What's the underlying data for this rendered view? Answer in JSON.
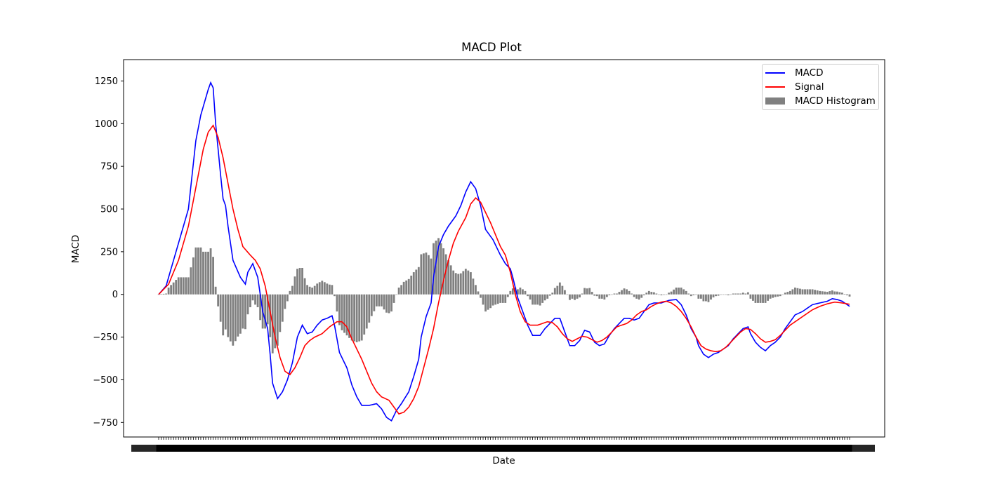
{
  "chart_data": {
    "type": "line",
    "title": "MACD Plot",
    "xlabel": "Date",
    "ylabel": "MACD",
    "ylim": [
      -835,
      1375
    ],
    "yticks": [
      1250,
      1000,
      750,
      500,
      250,
      0,
      -250,
      -500,
      -750
    ],
    "x_points": 280,
    "grid": false,
    "legend_placement": "upper right",
    "colors": {
      "macd": "#0000ff",
      "signal": "#ff0000",
      "histogram": "#808080"
    },
    "series": [
      {
        "name": "MACD",
        "kind": "line",
        "knots": [
          [
            0,
            0
          ],
          [
            3,
            50
          ],
          [
            8,
            300
          ],
          [
            12,
            500
          ],
          [
            15,
            900
          ],
          [
            17,
            1050
          ],
          [
            20,
            1200
          ],
          [
            21,
            1240
          ],
          [
            22,
            1210
          ],
          [
            23,
            1000
          ],
          [
            25,
            700
          ],
          [
            26,
            560
          ],
          [
            27,
            520
          ],
          [
            28,
            400
          ],
          [
            29,
            300
          ],
          [
            30,
            200
          ],
          [
            33,
            100
          ],
          [
            35,
            60
          ],
          [
            36,
            130
          ],
          [
            38,
            180
          ],
          [
            40,
            100
          ],
          [
            42,
            -100
          ],
          [
            44,
            -200
          ],
          [
            45,
            -350
          ],
          [
            46,
            -520
          ],
          [
            48,
            -610
          ],
          [
            50,
            -570
          ],
          [
            52,
            -500
          ],
          [
            54,
            -400
          ],
          [
            56,
            -250
          ],
          [
            58,
            -180
          ],
          [
            60,
            -230
          ],
          [
            62,
            -220
          ],
          [
            64,
            -180
          ],
          [
            66,
            -150
          ],
          [
            68,
            -140
          ],
          [
            70,
            -125
          ],
          [
            71,
            -180
          ],
          [
            72,
            -260
          ],
          [
            73,
            -340
          ],
          [
            76,
            -430
          ],
          [
            78,
            -530
          ],
          [
            80,
            -600
          ],
          [
            82,
            -650
          ],
          [
            85,
            -650
          ],
          [
            88,
            -640
          ],
          [
            90,
            -670
          ],
          [
            92,
            -720
          ],
          [
            94,
            -740
          ],
          [
            96,
            -680
          ],
          [
            98,
            -640
          ],
          [
            101,
            -570
          ],
          [
            103,
            -480
          ],
          [
            105,
            -380
          ],
          [
            106,
            -250
          ],
          [
            108,
            -130
          ],
          [
            110,
            -50
          ],
          [
            111,
            100
          ],
          [
            113,
            280
          ],
          [
            115,
            350
          ],
          [
            117,
            400
          ],
          [
            120,
            460
          ],
          [
            122,
            520
          ],
          [
            124,
            600
          ],
          [
            126,
            660
          ],
          [
            128,
            620
          ],
          [
            130,
            520
          ],
          [
            131,
            450
          ],
          [
            132,
            380
          ],
          [
            135,
            320
          ],
          [
            138,
            230
          ],
          [
            140,
            180
          ],
          [
            142,
            150
          ],
          [
            143,
            100
          ],
          [
            145,
            -20
          ],
          [
            147,
            -100
          ],
          [
            149,
            -180
          ],
          [
            151,
            -240
          ],
          [
            154,
            -240
          ],
          [
            156,
            -200
          ],
          [
            158,
            -170
          ],
          [
            160,
            -140
          ],
          [
            162,
            -140
          ],
          [
            164,
            -220
          ],
          [
            166,
            -300
          ],
          [
            168,
            -300
          ],
          [
            170,
            -270
          ],
          [
            172,
            -210
          ],
          [
            174,
            -220
          ],
          [
            176,
            -280
          ],
          [
            178,
            -300
          ],
          [
            180,
            -290
          ],
          [
            182,
            -240
          ],
          [
            184,
            -200
          ],
          [
            186,
            -170
          ],
          [
            188,
            -140
          ],
          [
            190,
            -140
          ],
          [
            192,
            -150
          ],
          [
            194,
            -140
          ],
          [
            196,
            -100
          ],
          [
            198,
            -60
          ],
          [
            200,
            -50
          ],
          [
            203,
            -50
          ],
          [
            206,
            -35
          ],
          [
            209,
            -30
          ],
          [
            211,
            -60
          ],
          [
            213,
            -120
          ],
          [
            215,
            -200
          ],
          [
            217,
            -250
          ],
          [
            218,
            -300
          ],
          [
            220,
            -350
          ],
          [
            222,
            -370
          ],
          [
            224,
            -350
          ],
          [
            226,
            -340
          ],
          [
            228,
            -320
          ],
          [
            230,
            -300
          ],
          [
            232,
            -260
          ],
          [
            234,
            -230
          ],
          [
            236,
            -200
          ],
          [
            238,
            -190
          ],
          [
            239,
            -230
          ],
          [
            241,
            -280
          ],
          [
            243,
            -310
          ],
          [
            245,
            -330
          ],
          [
            247,
            -300
          ],
          [
            249,
            -280
          ],
          [
            251,
            -250
          ],
          [
            253,
            -200
          ],
          [
            255,
            -160
          ],
          [
            257,
            -120
          ],
          [
            260,
            -100
          ],
          [
            262,
            -80
          ],
          [
            264,
            -60
          ],
          [
            267,
            -50
          ],
          [
            270,
            -40
          ],
          [
            272,
            -25
          ],
          [
            274,
            -30
          ],
          [
            276,
            -40
          ],
          [
            278,
            -60
          ],
          [
            280,
            -80
          ]
        ]
      },
      {
        "name": "Signal",
        "kind": "line",
        "knots": [
          [
            0,
            0
          ],
          [
            4,
            60
          ],
          [
            8,
            200
          ],
          [
            12,
            400
          ],
          [
            16,
            700
          ],
          [
            18,
            850
          ],
          [
            20,
            950
          ],
          [
            22,
            990
          ],
          [
            24,
            920
          ],
          [
            26,
            800
          ],
          [
            28,
            650
          ],
          [
            30,
            500
          ],
          [
            32,
            380
          ],
          [
            34,
            280
          ],
          [
            37,
            230
          ],
          [
            39,
            200
          ],
          [
            41,
            150
          ],
          [
            43,
            50
          ],
          [
            45,
            -100
          ],
          [
            47,
            -250
          ],
          [
            49,
            -370
          ],
          [
            51,
            -450
          ],
          [
            53,
            -470
          ],
          [
            55,
            -430
          ],
          [
            57,
            -370
          ],
          [
            59,
            -300
          ],
          [
            61,
            -270
          ],
          [
            63,
            -250
          ],
          [
            66,
            -230
          ],
          [
            69,
            -190
          ],
          [
            72,
            -160
          ],
          [
            74,
            -160
          ],
          [
            76,
            -190
          ],
          [
            78,
            -260
          ],
          [
            80,
            -320
          ],
          [
            82,
            -380
          ],
          [
            84,
            -450
          ],
          [
            86,
            -520
          ],
          [
            88,
            -570
          ],
          [
            90,
            -600
          ],
          [
            93,
            -620
          ],
          [
            95,
            -660
          ],
          [
            97,
            -700
          ],
          [
            99,
            -690
          ],
          [
            101,
            -660
          ],
          [
            103,
            -610
          ],
          [
            105,
            -540
          ],
          [
            107,
            -430
          ],
          [
            109,
            -320
          ],
          [
            111,
            -200
          ],
          [
            113,
            -50
          ],
          [
            115,
            80
          ],
          [
            117,
            200
          ],
          [
            119,
            300
          ],
          [
            121,
            370
          ],
          [
            124,
            450
          ],
          [
            126,
            530
          ],
          [
            128,
            565
          ],
          [
            130,
            540
          ],
          [
            132,
            480
          ],
          [
            134,
            420
          ],
          [
            136,
            350
          ],
          [
            138,
            280
          ],
          [
            140,
            230
          ],
          [
            142,
            130
          ],
          [
            144,
            0
          ],
          [
            146,
            -100
          ],
          [
            148,
            -160
          ],
          [
            150,
            -180
          ],
          [
            153,
            -180
          ],
          [
            155,
            -170
          ],
          [
            157,
            -160
          ],
          [
            159,
            -165
          ],
          [
            161,
            -190
          ],
          [
            163,
            -230
          ],
          [
            165,
            -260
          ],
          [
            167,
            -275
          ],
          [
            169,
            -260
          ],
          [
            171,
            -245
          ],
          [
            173,
            -250
          ],
          [
            175,
            -265
          ],
          [
            177,
            -280
          ],
          [
            179,
            -270
          ],
          [
            181,
            -250
          ],
          [
            183,
            -220
          ],
          [
            185,
            -190
          ],
          [
            187,
            -180
          ],
          [
            189,
            -170
          ],
          [
            191,
            -150
          ],
          [
            193,
            -120
          ],
          [
            195,
            -100
          ],
          [
            197,
            -90
          ],
          [
            199,
            -70
          ],
          [
            201,
            -55
          ],
          [
            203,
            -45
          ],
          [
            205,
            -40
          ],
          [
            207,
            -50
          ],
          [
            209,
            -70
          ],
          [
            211,
            -100
          ],
          [
            213,
            -140
          ],
          [
            215,
            -190
          ],
          [
            217,
            -250
          ],
          [
            219,
            -300
          ],
          [
            221,
            -320
          ],
          [
            223,
            -330
          ],
          [
            225,
            -335
          ],
          [
            227,
            -330
          ],
          [
            229,
            -310
          ],
          [
            231,
            -280
          ],
          [
            233,
            -250
          ],
          [
            235,
            -220
          ],
          [
            237,
            -200
          ],
          [
            239,
            -205
          ],
          [
            241,
            -230
          ],
          [
            243,
            -260
          ],
          [
            245,
            -280
          ],
          [
            247,
            -275
          ],
          [
            249,
            -265
          ],
          [
            251,
            -240
          ],
          [
            253,
            -210
          ],
          [
            255,
            -180
          ],
          [
            257,
            -160
          ],
          [
            260,
            -130
          ],
          [
            262,
            -110
          ],
          [
            264,
            -90
          ],
          [
            267,
            -70
          ],
          [
            270,
            -55
          ],
          [
            273,
            -45
          ],
          [
            276,
            -50
          ],
          [
            278,
            -55
          ],
          [
            280,
            -60
          ]
        ]
      },
      {
        "name": "MACD Histogram",
        "kind": "bar",
        "value_rule": "MACD - Signal"
      }
    ]
  },
  "legend": {
    "macd_label": "MACD",
    "signal_label": "Signal",
    "hist_label": "MACD Histogram"
  }
}
